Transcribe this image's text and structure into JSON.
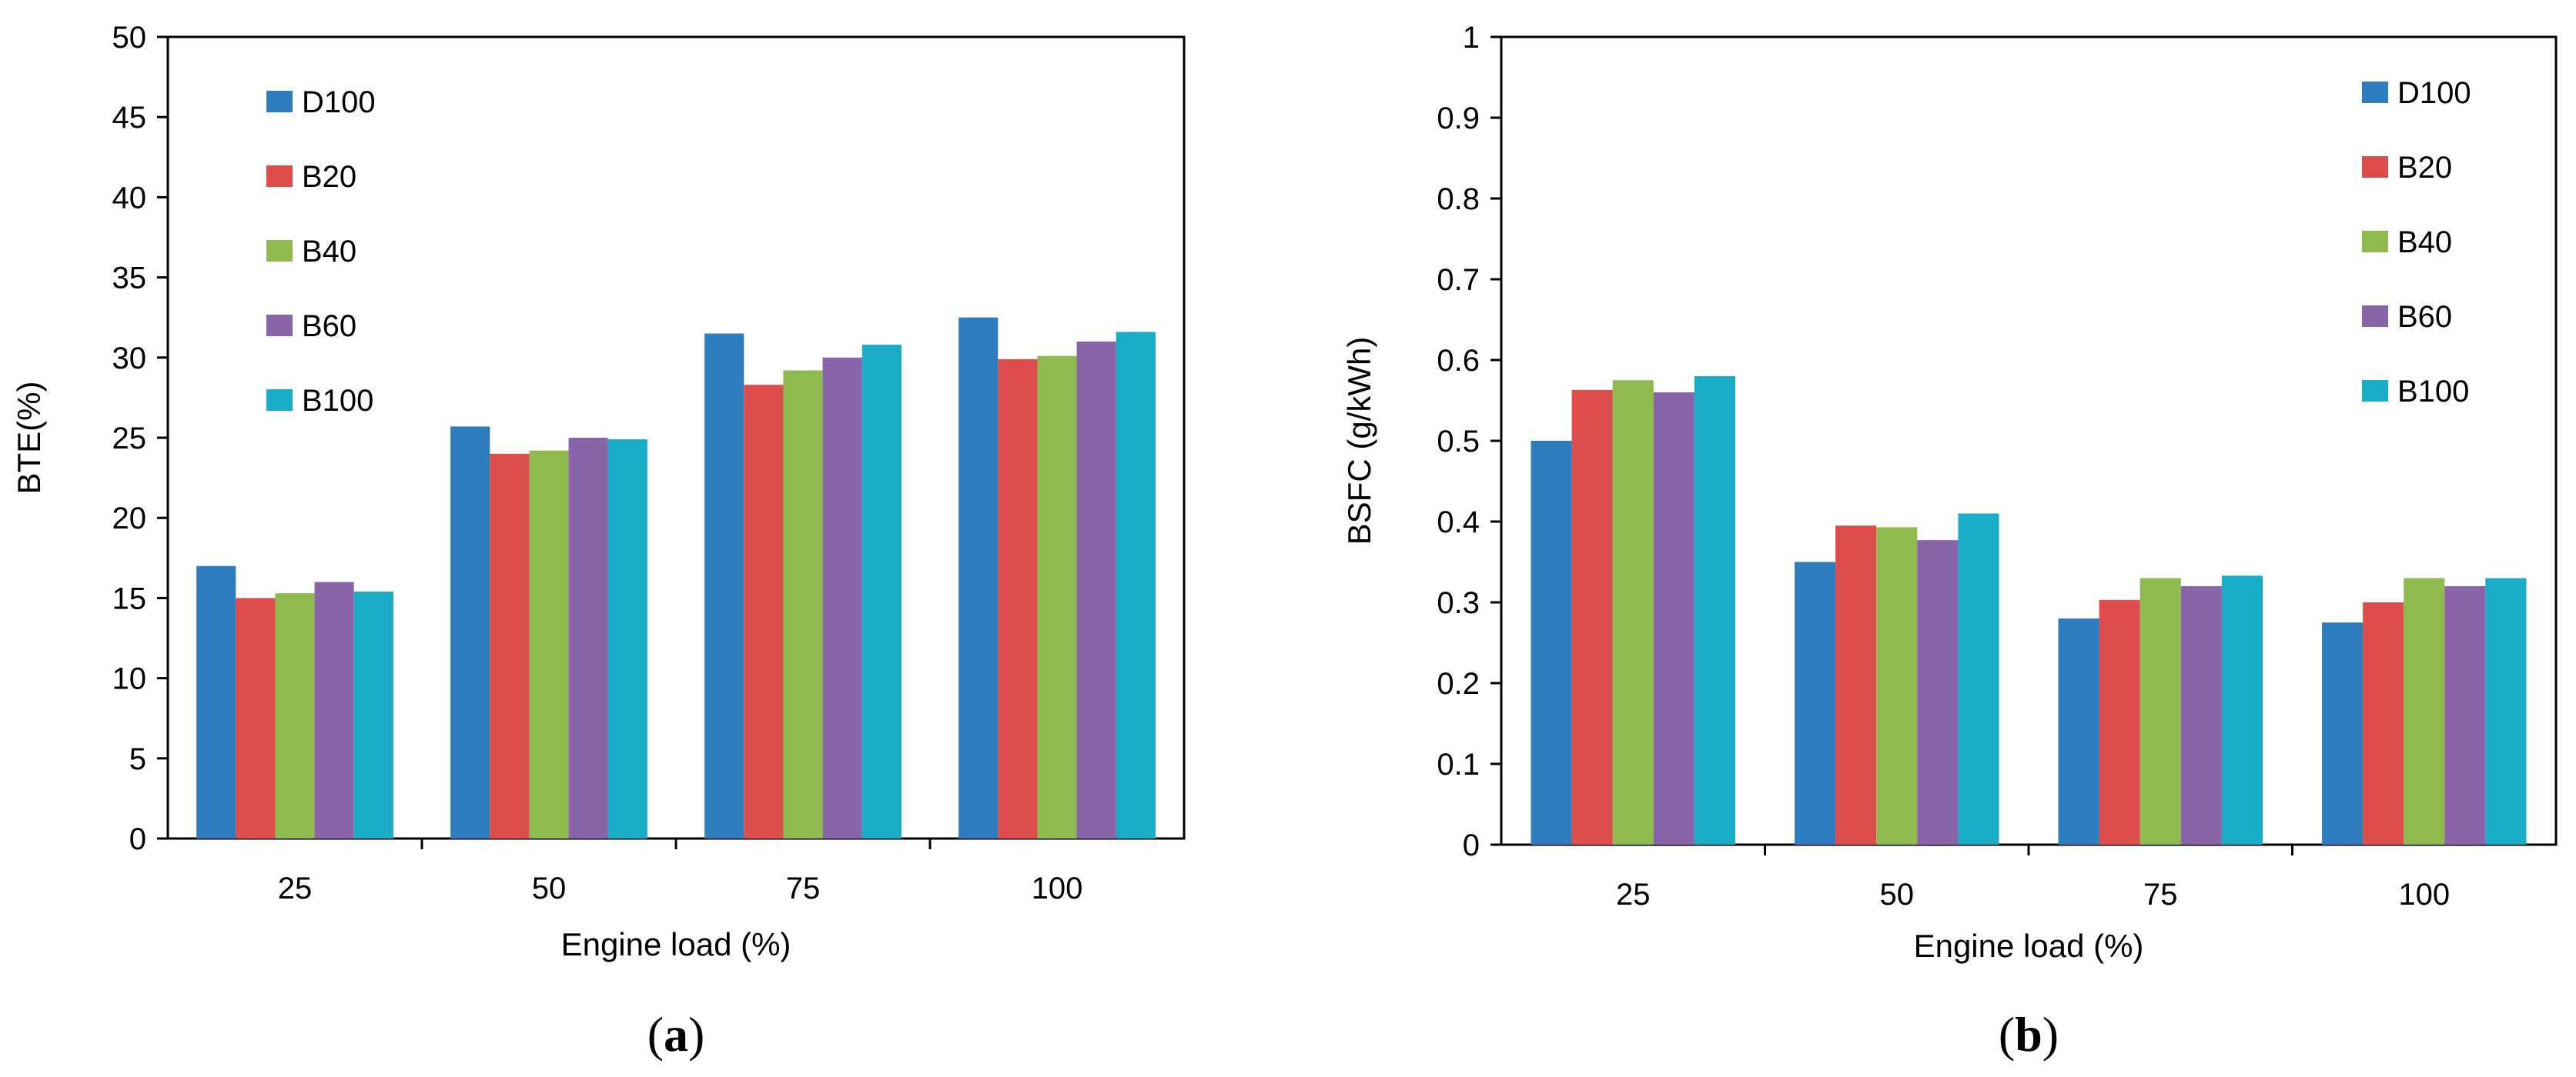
{
  "chart_data": [
    {
      "type": "bar",
      "panel_label": "(a)",
      "title": "",
      "xlabel": "Engine load (%)",
      "ylabel": "BTE(%)",
      "categories": [
        "25",
        "50",
        "75",
        "100"
      ],
      "ylim": [
        0,
        50
      ],
      "yticks": [
        "0",
        "5",
        "10",
        "15",
        "20",
        "25",
        "30",
        "35",
        "40",
        "45",
        "50"
      ],
      "legend_position": "top-left",
      "grid": false,
      "series": [
        {
          "name": "D100",
          "color": "#2e7dbf",
          "values": [
            17,
            25.7,
            31.5,
            32.5
          ]
        },
        {
          "name": "B20",
          "color": "#dc4d4b",
          "values": [
            15,
            24,
            28.3,
            29.9
          ]
        },
        {
          "name": "B40",
          "color": "#8fbb4e",
          "values": [
            15.3,
            24.2,
            29.2,
            30.1
          ]
        },
        {
          "name": "B60",
          "color": "#8a64a8",
          "values": [
            16,
            25,
            30,
            31
          ]
        },
        {
          "name": "B100",
          "color": "#18acc6",
          "values": [
            15.4,
            24.9,
            30.8,
            31.6
          ]
        }
      ]
    },
    {
      "type": "bar",
      "panel_label": "(b)",
      "title": "",
      "xlabel": "Engine load (%)",
      "ylabel": "BSFC (g/kWh)",
      "categories": [
        "25",
        "50",
        "75",
        "100"
      ],
      "ylim": [
        0,
        1
      ],
      "yticks": [
        "0",
        "0.1",
        "0.2",
        "0.3",
        "0.4",
        "0.5",
        "0.6",
        "0.7",
        "0.8",
        "0.9",
        "1"
      ],
      "legend_position": "top-right",
      "grid": false,
      "series": [
        {
          "name": "D100",
          "color": "#2e7dbf",
          "values": [
            0.5,
            0.35,
            0.28,
            0.275
          ]
        },
        {
          "name": "B20",
          "color": "#dc4d4b",
          "values": [
            0.563,
            0.395,
            0.303,
            0.3
          ]
        },
        {
          "name": "B40",
          "color": "#8fbb4e",
          "values": [
            0.575,
            0.393,
            0.33,
            0.33
          ]
        },
        {
          "name": "B60",
          "color": "#8a64a8",
          "values": [
            0.56,
            0.377,
            0.32,
            0.32
          ]
        },
        {
          "name": "B100",
          "color": "#18acc6",
          "values": [
            0.58,
            0.41,
            0.333,
            0.33
          ]
        }
      ]
    }
  ]
}
